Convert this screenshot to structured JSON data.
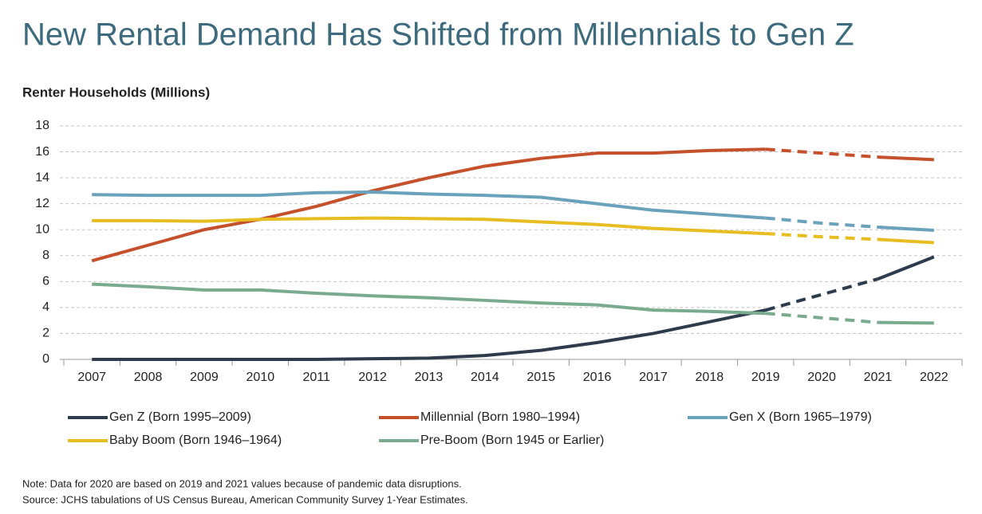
{
  "chart_data": {
    "type": "line",
    "title": "New Rental Demand Has Shifted from Millennials to Gen Z",
    "y_axis_title": "Renter Households (Millions)",
    "categories": [
      "2007",
      "2008",
      "2009",
      "2010",
      "2011",
      "2012",
      "2013",
      "2014",
      "2015",
      "2016",
      "2017",
      "2018",
      "2019",
      "2020",
      "2021",
      "2022"
    ],
    "series": [
      {
        "name": "Gen Z (Born 1995–2009)",
        "color": "#2e3b4c",
        "values": [
          0,
          0,
          0,
          0,
          0,
          0.05,
          0.1,
          0.3,
          0.7,
          1.3,
          2.0,
          2.9,
          3.8,
          5.0,
          6.2,
          7.9
        ]
      },
      {
        "name": "Millennial (Born 1980–1994)",
        "color": "#c4512b",
        "values": [
          7.6,
          8.8,
          10.0,
          10.8,
          11.8,
          13.0,
          14.0,
          14.9,
          15.5,
          15.9,
          15.9,
          16.1,
          16.2,
          15.9,
          15.6,
          15.4
        ]
      },
      {
        "name": "Gen X (Born 1965–1979)",
        "color": "#6aa2bb",
        "values": [
          12.7,
          12.65,
          12.65,
          12.65,
          12.85,
          12.9,
          12.75,
          12.65,
          12.5,
          12.0,
          11.5,
          11.2,
          10.9,
          10.5,
          10.2,
          9.95
        ]
      },
      {
        "name": "Baby Boom (Born 1946–1964)",
        "color": "#e8bd22",
        "values": [
          10.7,
          10.7,
          10.65,
          10.8,
          10.85,
          10.9,
          10.85,
          10.8,
          10.6,
          10.4,
          10.1,
          9.9,
          9.7,
          9.45,
          9.25,
          9.0
        ]
      },
      {
        "name": "Pre-Boom (Born 1945 or Earlier)",
        "color": "#7aab8e",
        "values": [
          5.8,
          5.6,
          5.35,
          5.35,
          5.1,
          4.9,
          4.75,
          4.55,
          4.35,
          4.2,
          3.8,
          3.7,
          3.55,
          3.2,
          2.85,
          2.8
        ]
      }
    ],
    "dashed_between": [
      "2019",
      "2021"
    ],
    "ylim": [
      0,
      18
    ],
    "yticks": [
      0,
      2,
      4,
      6,
      8,
      10,
      12,
      14,
      16,
      18
    ],
    "grid": true,
    "legend": "bottom",
    "notes": [
      "Note: Data for 2020 are based on 2019 and 2021 values because of pandemic data disruptions.",
      "Source: JCHS tabulations of US Census Bureau, American Community Survey 1-Year Estimates."
    ]
  }
}
